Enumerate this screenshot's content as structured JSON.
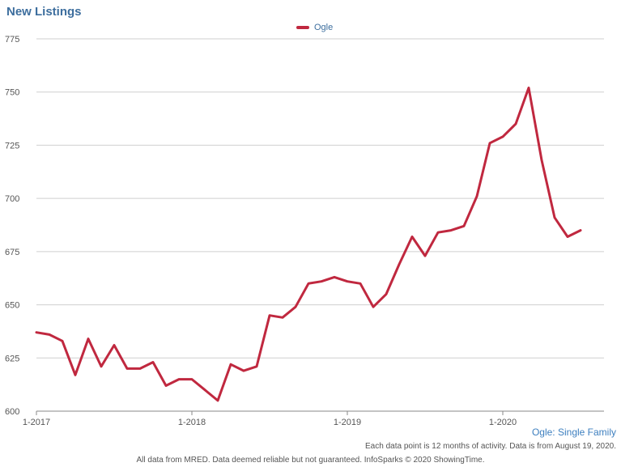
{
  "chart_data": {
    "type": "line",
    "title": "New Listings",
    "ylim": [
      600,
      775
    ],
    "yticks": [
      600,
      625,
      650,
      675,
      700,
      725,
      750,
      775
    ],
    "xticks": [
      "1-2017",
      "1-2018",
      "1-2019",
      "1-2020"
    ],
    "grid": true,
    "legend_placement": "top-center",
    "series": [
      {
        "name": "Ogle",
        "color": "#c0283f",
        "x": [
          "2017-01",
          "2017-02",
          "2017-03",
          "2017-04",
          "2017-05",
          "2017-06",
          "2017-07",
          "2017-08",
          "2017-09",
          "2017-10",
          "2017-11",
          "2017-12",
          "2018-01",
          "2018-02",
          "2018-03",
          "2018-04",
          "2018-05",
          "2018-06",
          "2018-07",
          "2018-08",
          "2018-09",
          "2018-10",
          "2018-11",
          "2018-12",
          "2019-01",
          "2019-02",
          "2019-03",
          "2019-04",
          "2019-05",
          "2019-06",
          "2019-07",
          "2019-08",
          "2019-09",
          "2019-10",
          "2019-11",
          "2019-12",
          "2020-01",
          "2020-02",
          "2020-03",
          "2020-04",
          "2020-05",
          "2020-06",
          "2020-07"
        ],
        "values": [
          637,
          636,
          633,
          617,
          634,
          621,
          631,
          620,
          620,
          623,
          612,
          615,
          615,
          610,
          605,
          622,
          619,
          621,
          645,
          644,
          649,
          660,
          661,
          663,
          661,
          660,
          649,
          655,
          669,
          682,
          673,
          684,
          685,
          687,
          701,
          726,
          729,
          735,
          752,
          718,
          691,
          682,
          685
        ]
      }
    ]
  },
  "labels": {
    "subtitle": "Ogle: Single Family",
    "note": "Each data point is 12 months of activity. Data is from August 19, 2020.",
    "footer": "All data from MRED. Data deemed reliable but not guaranteed. InfoSparks © 2020 ShowingTime."
  }
}
